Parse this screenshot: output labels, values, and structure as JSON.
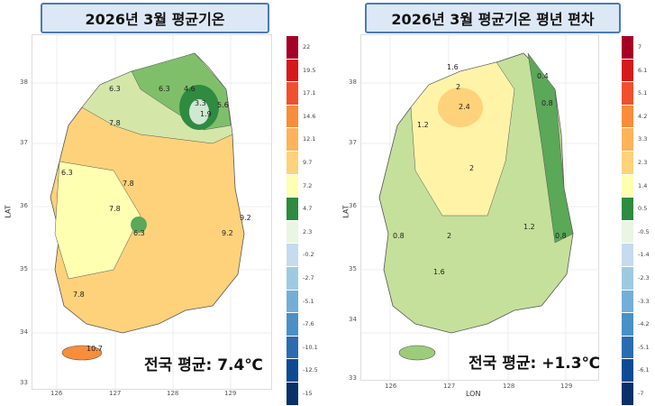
{
  "left": {
    "title": "2026년 3월 평균기온",
    "average": "전국 평균: 7.4℃",
    "ylabel": "LAT",
    "yticks": [
      "38",
      "37",
      "36",
      "35",
      "34",
      "33"
    ],
    "xticks": [
      "126",
      "127",
      "128",
      "129"
    ],
    "legend": [
      "22",
      "19.5",
      "17.1",
      "14.6",
      "12.1",
      "9.7",
      "7.2",
      "4.7",
      "2.3",
      "-0.2",
      "-2.7",
      "-5.1",
      "-7.6",
      "-10.1",
      "-12.5",
      "-15"
    ],
    "contour_labels": [
      "6.3",
      "4.6",
      "3.3",
      "1.9",
      "5.6",
      "6.3",
      "7.8",
      "6.3",
      "7.8",
      "7.8",
      "6.3",
      "9.2",
      "9.2",
      "7.8",
      "10.7"
    ]
  },
  "right": {
    "title": "2026년 3월 평균기온 평년 편차",
    "average": "전국 평균: +1.3℃",
    "ylabel": "LAT",
    "xlabel": "LON",
    "yticks": [
      "38",
      "37",
      "36",
      "35",
      "34",
      "33"
    ],
    "xticks": [
      "126",
      "127",
      "128",
      "129"
    ],
    "legend": [
      "7",
      "6.1",
      "5.1",
      "4.2",
      "3.3",
      "2.3",
      "1.4",
      "0.5",
      "-0.5",
      "-1.4",
      "-2.3",
      "-3.3",
      "-4.2",
      "-5.1",
      "-6.1",
      "-7"
    ],
    "contour_labels": [
      "1.6",
      "2",
      "2.4",
      "1.2",
      "0.4",
      "0.8",
      "2",
      "1.2",
      "0.8",
      "0.8",
      "2",
      "1.6"
    ]
  },
  "colors": {
    "scale": [
      "#a50026",
      "#d7191c",
      "#f0502e",
      "#f88d3c",
      "#fdb35a",
      "#fed27a",
      "#ffffb2",
      "#2e8b3f",
      "#eaf5e4",
      "#c6dbef",
      "#9ecae1",
      "#74aed6",
      "#4a90c6",
      "#2b6cb0",
      "#0d4a94",
      "#08306b"
    ]
  }
}
